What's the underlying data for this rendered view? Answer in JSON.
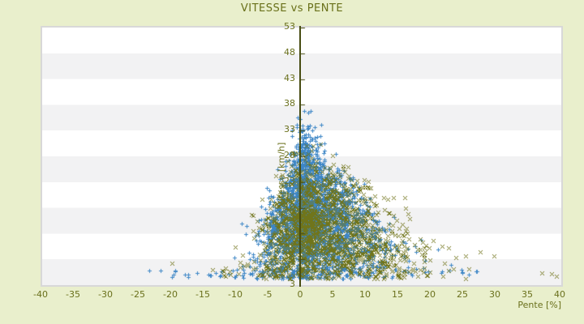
{
  "page": {
    "background": "#e9efcc"
  },
  "axes": {
    "tick_color": "#6a701c",
    "title_color": "#697019",
    "axis_line_color": "#474c12",
    "plot_border_color": "#d8d8d8"
  },
  "chart_data": {
    "type": "scatter",
    "title": "VITESSE vs PENTE",
    "xlabel": "Pente [%]",
    "ylabel": "Vitesse [km/h]",
    "xlim": [
      -40,
      40
    ],
    "ylim": [
      3,
      53
    ],
    "xticks": [
      -40,
      -35,
      -30,
      -25,
      -20,
      -15,
      -10,
      -5,
      0,
      5,
      10,
      15,
      20,
      25,
      30,
      35,
      40
    ],
    "yticks": [
      53,
      48,
      43,
      38,
      33,
      28,
      23,
      18,
      13,
      8,
      3
    ],
    "grid": "horizontal-bands",
    "band_colors": [
      "#ffffff",
      "#f2f2f3"
    ],
    "zero_axis_x": 0,
    "legend": "none",
    "seed": 20240517,
    "series": [
      {
        "id": "vitesse-bleu",
        "marker": "plus",
        "color": "#3d86c6",
        "size": 5,
        "clusters": [
          {
            "kind": "blob",
            "count": 2600,
            "y_mean": 14.5,
            "y_sd": 6.6,
            "y_min": 4.2,
            "y_max": 37.0,
            "x_mu": 1.3,
            "x_sigma_base": 0.9,
            "x_sigma_per_y": 0.155,
            "skew_right": 0.55
          },
          {
            "kind": "blob",
            "count": 140,
            "y_mean": 27.0,
            "y_sd": 3.5,
            "y_min": 22.0,
            "y_max": 37.0,
            "x_mu": 0.2,
            "x_sigma_base": 0.8,
            "x_sigma_per_y": 0.06,
            "skew_right": 0.2
          },
          {
            "kind": "wing",
            "count": 115,
            "x_min": -23,
            "x_max": 27,
            "y_min": 4.4,
            "y_max": 6.2,
            "center_bias": 1.8
          }
        ],
        "outliers": [
          [
            27,
            5.7
          ],
          [
            21.5,
            5.3
          ],
          [
            -23.5,
            5.8
          ],
          [
            -0.8,
            34.2
          ],
          [
            0.4,
            36.8
          ],
          [
            -1.5,
            33.1
          ]
        ]
      },
      {
        "id": "vitesse-olive",
        "marker": "x",
        "color": "#70751b",
        "size": 5,
        "clusters": [
          {
            "kind": "blob",
            "count": 1500,
            "y_mean": 13.0,
            "y_sd": 6.2,
            "y_min": 4.2,
            "y_max": 30.5,
            "x_mu": 2.2,
            "x_sigma_base": 1.1,
            "x_sigma_per_y": 0.17,
            "skew_right": 0.7
          },
          {
            "kind": "wing",
            "count": 60,
            "x_min": -16,
            "x_max": 22,
            "y_min": 4.4,
            "y_max": 6.4,
            "center_bias": 1.6
          },
          {
            "kind": "blob",
            "count": 110,
            "y_mean": 8.0,
            "y_sd": 2.5,
            "y_min": 4.2,
            "y_max": 14.0,
            "x_mu": 9.0,
            "x_sigma_base": 3.5,
            "x_sigma_per_y": 0.0,
            "skew_right": 0.3
          }
        ],
        "outliers": [
          [
            37,
            5.4
          ],
          [
            38.5,
            5.2
          ],
          [
            39.3,
            4.8
          ],
          [
            27.5,
            9.5
          ],
          [
            16.5,
            12.0
          ],
          [
            -20,
            7.2
          ]
        ]
      }
    ]
  }
}
